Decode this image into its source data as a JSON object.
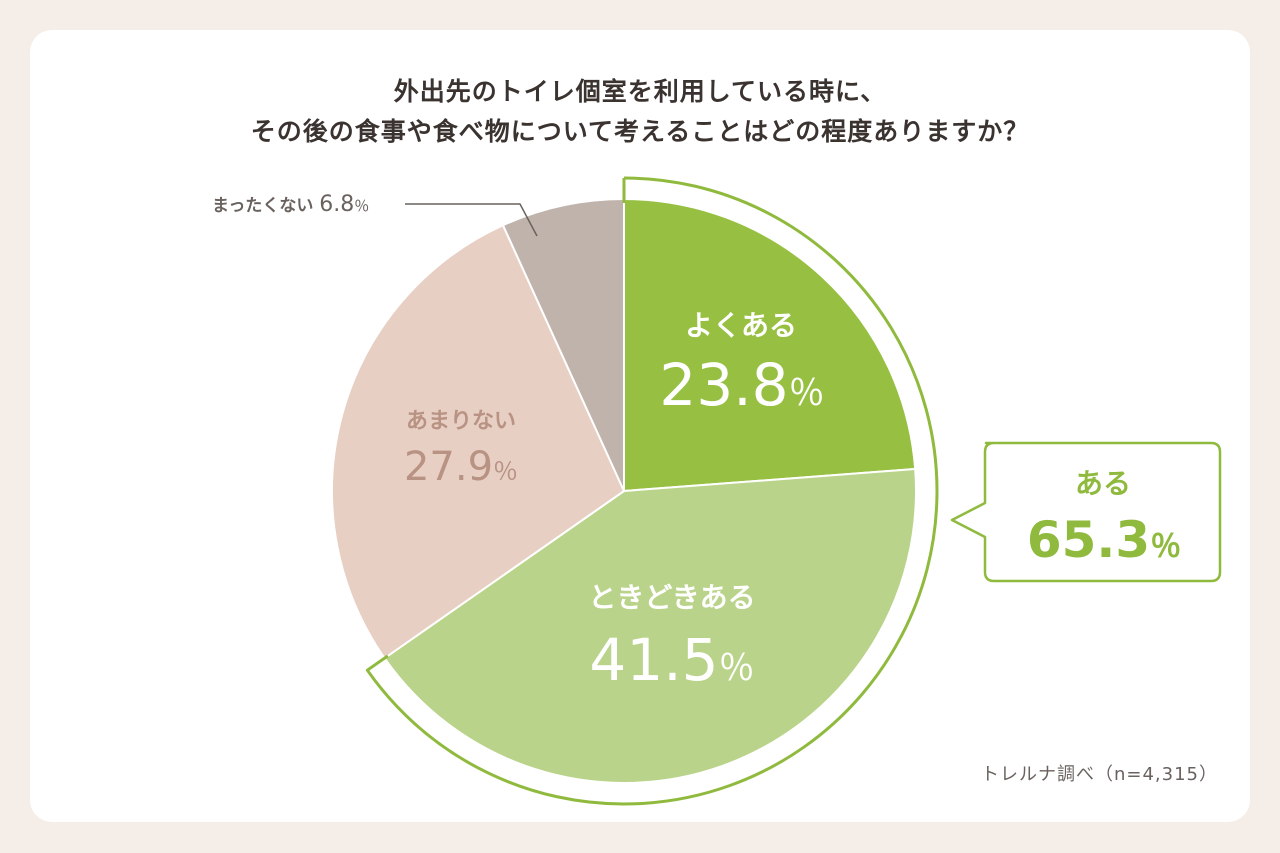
{
  "title": {
    "line1": "外出先のトイレ個室を利用している時に、",
    "line2": "その後の食事や食べ物について考えることはどの程度ありますか？"
  },
  "source": "トレルナ調べ（n=4,315）",
  "colors": {
    "yoku": "#97c042",
    "tokidoki": "#bad38a",
    "amari": "#e8cfc4",
    "mattaku": "#c0b3ac",
    "accent": "#8fba3d",
    "amari_text": "#b89282",
    "mattaku_text": "#6a625e"
  },
  "chart_data": {
    "type": "pie",
    "title": "外出先のトイレ個室を利用している時に、その後の食事や食べ物について考えることはどの程度ありますか？",
    "slices": [
      {
        "label": "よくある",
        "value": 23.8,
        "display": "23.8％"
      },
      {
        "label": "ときどきある",
        "value": 41.5,
        "display": "41.5％"
      },
      {
        "label": "あまりない",
        "value": 27.9,
        "display": "27.9％"
      },
      {
        "label": "まったくない",
        "value": 6.8,
        "display": "6.8％"
      }
    ],
    "group_callout": {
      "label": "ある",
      "value": 65.3,
      "display": "65.3％"
    },
    "note": "トレルナ調べ（n=4,315）"
  }
}
